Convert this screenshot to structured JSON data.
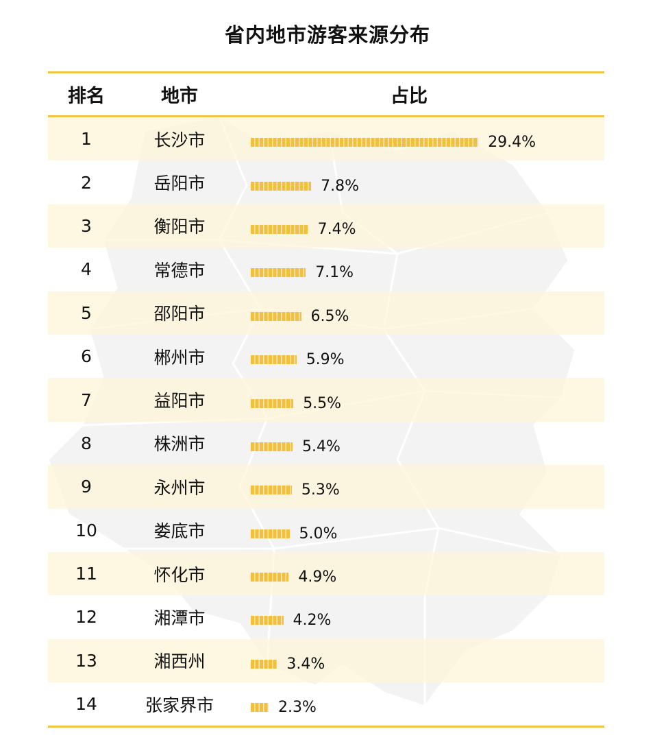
{
  "title": "省内地市游客来源分布",
  "header": {
    "rank": "排名",
    "city": "地市",
    "share": "占比"
  },
  "colors": {
    "accent": "#F2C443",
    "bar": "#F2C03E",
    "row_highlight": "#FDF4D6",
    "map": "#F2F2F2"
  },
  "rows": [
    {
      "rank": "1",
      "city": "长沙市",
      "value": 29.4,
      "label": "29.4%"
    },
    {
      "rank": "2",
      "city": "岳阳市",
      "value": 7.8,
      "label": "7.8%"
    },
    {
      "rank": "3",
      "city": "衡阳市",
      "value": 7.4,
      "label": "7.4%"
    },
    {
      "rank": "4",
      "city": "常德市",
      "value": 7.1,
      "label": "7.1%"
    },
    {
      "rank": "5",
      "city": "邵阳市",
      "value": 6.5,
      "label": "6.5%"
    },
    {
      "rank": "6",
      "city": "郴州市",
      "value": 5.9,
      "label": "5.9%"
    },
    {
      "rank": "7",
      "city": "益阳市",
      "value": 5.5,
      "label": "5.5%"
    },
    {
      "rank": "8",
      "city": "株洲市",
      "value": 5.4,
      "label": "5.4%"
    },
    {
      "rank": "9",
      "city": "永州市",
      "value": 5.3,
      "label": "5.3%"
    },
    {
      "rank": "10",
      "city": "娄底市",
      "value": 5.0,
      "label": "5.0%"
    },
    {
      "rank": "11",
      "city": "怀化市",
      "value": 4.9,
      "label": "4.9%"
    },
    {
      "rank": "12",
      "city": "湘潭市",
      "value": 4.2,
      "label": "4.2%"
    },
    {
      "rank": "13",
      "city": "湘西州",
      "value": 3.4,
      "label": "3.4%"
    },
    {
      "rank": "14",
      "city": "张家界市",
      "value": 2.3,
      "label": "2.3%"
    }
  ],
  "chart_data": {
    "type": "bar",
    "orientation": "horizontal",
    "title": "省内地市游客来源分布",
    "columns": [
      "排名",
      "地市",
      "占比"
    ],
    "categories": [
      "长沙市",
      "岳阳市",
      "衡阳市",
      "常德市",
      "邵阳市",
      "郴州市",
      "益阳市",
      "株洲市",
      "永州市",
      "娄底市",
      "怀化市",
      "湘潭市",
      "湘西州",
      "张家界市"
    ],
    "values": [
      29.4,
      7.8,
      7.4,
      7.1,
      6.5,
      5.9,
      5.5,
      5.4,
      5.3,
      5.0,
      4.9,
      4.2,
      3.4,
      2.3
    ],
    "unit": "%",
    "xlabel": "",
    "ylabel": "",
    "legend": "none",
    "grid": false
  }
}
